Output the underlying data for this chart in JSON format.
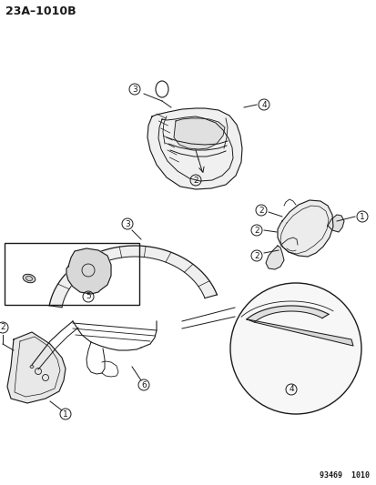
{
  "title": "23A–1010B",
  "footer": "93469  1010",
  "bg": "#ffffff",
  "lc": "#1a1a1a",
  "fig_w": 4.14,
  "fig_h": 5.33,
  "dpi": 100
}
